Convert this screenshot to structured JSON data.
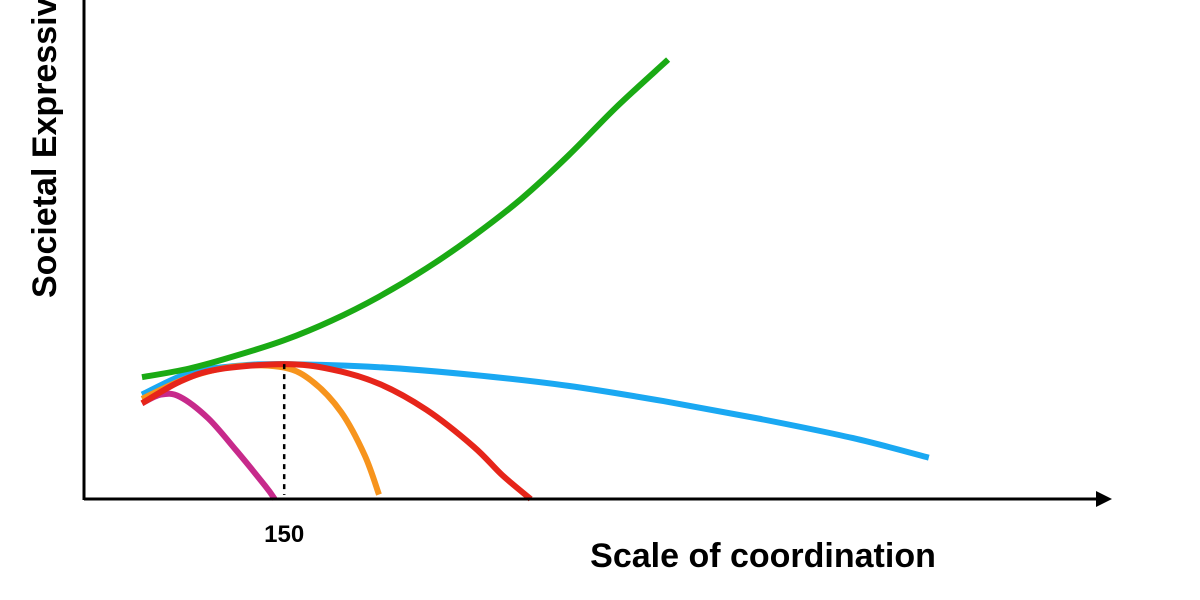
{
  "chart_data": {
    "type": "line",
    "title": "",
    "xlabel": "Scale of coordination",
    "ylabel": "Societal Expressive",
    "ylabel_full_text_visible": "Societal Expressiv",
    "x_ticks": [
      {
        "value": 150,
        "label": "150"
      }
    ],
    "xlim": [
      0,
      1000
    ],
    "ylim": [
      0,
      100
    ],
    "grid": false,
    "legend": "none",
    "reference_lines": [
      {
        "x": 150,
        "y_top": 31,
        "style": "dotted",
        "color": "#000000"
      }
    ],
    "series": [
      {
        "color": "#1aaa14",
        "values": [
          [
            0,
            28
          ],
          [
            50,
            30
          ],
          [
            100,
            33
          ],
          [
            150,
            36.5
          ],
          [
            200,
            41
          ],
          [
            250,
            46.5
          ],
          [
            300,
            53
          ],
          [
            350,
            60.5
          ],
          [
            400,
            69
          ],
          [
            450,
            79
          ],
          [
            500,
            90
          ],
          [
            555,
            101
          ]
        ]
      },
      {
        "color": "#1aa8f2",
        "values": [
          [
            0,
            24
          ],
          [
            50,
            29
          ],
          [
            100,
            30.6
          ],
          [
            150,
            31
          ],
          [
            250,
            30.3
          ],
          [
            350,
            28.5
          ],
          [
            450,
            26
          ],
          [
            550,
            22.5
          ],
          [
            650,
            18.5
          ],
          [
            750,
            14
          ],
          [
            830,
            9.5
          ]
        ]
      },
      {
        "color": "#e6251a",
        "values": [
          [
            0,
            22
          ],
          [
            40,
            27
          ],
          [
            80,
            29.8
          ],
          [
            150,
            31
          ],
          [
            200,
            29.8
          ],
          [
            250,
            26.5
          ],
          [
            300,
            20.5
          ],
          [
            350,
            12
          ],
          [
            380,
            5.5
          ],
          [
            410,
            0
          ]
        ]
      },
      {
        "color": "#f7941d",
        "values": [
          [
            0,
            23
          ],
          [
            50,
            28
          ],
          [
            100,
            30.5
          ],
          [
            150,
            30.2
          ],
          [
            180,
            27
          ],
          [
            210,
            20
          ],
          [
            235,
            10
          ],
          [
            250,
            1
          ]
        ]
      },
      {
        "color": "#c72a8b",
        "values": [
          [
            0,
            22
          ],
          [
            20,
            24
          ],
          [
            40,
            23.5
          ],
          [
            70,
            18.5
          ],
          [
            100,
            11
          ],
          [
            130,
            3
          ],
          [
            140,
            0
          ]
        ]
      }
    ]
  }
}
